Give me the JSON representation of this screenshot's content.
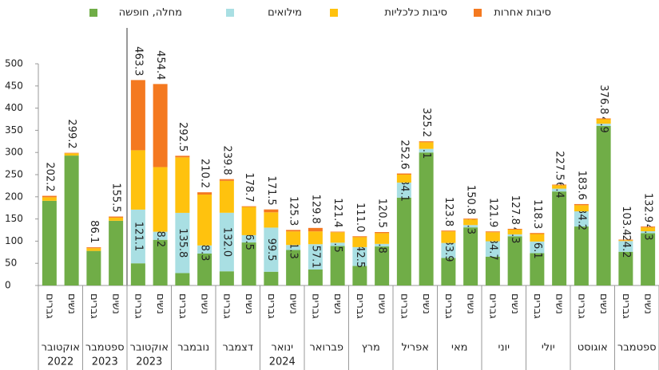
{
  "chart_data": {
    "type": "stacked-bar",
    "series": [
      {
        "name": "מחלה, חופשה",
        "color": "#70ad47",
        "values": [
          191,
          293,
          78,
          146,
          50,
          103,
          28,
          72,
          32,
          97,
          31,
          80,
          36,
          89,
          44,
          88,
          198,
          300,
          62,
          131,
          65,
          111,
          73,
          212,
          133,
          360,
          76,
          118
        ]
      },
      {
        "name": "מילואים",
        "color": "#a9dfe3",
        "values": [
          0,
          0,
          0,
          0,
          121.1,
          18.2,
          135.8,
          18.3,
          132,
          16.5,
          99.5,
          11.3,
          57.1,
          7.5,
          42.5,
          5.8,
          34.1,
          8.1,
          33.9,
          5.3,
          34.7,
          4.3,
          26.1,
          6.4,
          34.2,
          4.9,
          24.2,
          4.3
        ],
        "value_labels": [
          null,
          null,
          null,
          null,
          "121.1",
          "18.2",
          "135.8",
          "18.3",
          "132.0",
          "16.5",
          "99.5",
          "11.3",
          "57.1",
          "7.5",
          "42.5",
          "5.8",
          "34.1",
          "8.1",
          "33.9",
          "5.3",
          "34.7",
          "4.3",
          "26.1",
          "6.4",
          "34.2",
          "4.9",
          "24.2",
          "4.3"
        ]
      },
      {
        "name": "סיבות כלכליות",
        "color": "#ffc20e",
        "values": [
          8,
          5,
          6,
          7,
          133.9,
          145.8,
          125.2,
          114.7,
          72,
          63.5,
          34.5,
          30.7,
          28.9,
          23.5,
          22.5,
          24.2,
          17.9,
          14.9,
          26.1,
          12.7,
          20.3,
          10.7,
          16.9,
          7.6,
          13.8,
          10.1,
          1.8,
          8.7
        ]
      },
      {
        "name": "סיבות אחרות",
        "color": "#f47920",
        "values": [
          3.2,
          1.2,
          2.1,
          2.5,
          158.3,
          187.4,
          3.5,
          5.2,
          3.8,
          1.7,
          6.5,
          3.3,
          7.8,
          1.4,
          2,
          2.5,
          2.6,
          2.2,
          1.8,
          1.8,
          1.9,
          1.8,
          2.3,
          1.5,
          2.6,
          1.8,
          1.4,
          1.9
        ]
      }
    ],
    "total_labels": [
      "202.2",
      "299.2",
      "86.1",
      "155.5",
      "463.3",
      "454.4",
      "292.5",
      "210.2",
      "239.8",
      "178.7",
      "171.5",
      "125.3",
      "129.8",
      "121.4",
      "111.0",
      "120.5",
      "252.6",
      "325.2",
      "123.8",
      "150.8",
      "121.9",
      "127.8",
      "118.3",
      "227.5",
      "183.6",
      "376.8",
      "103.4",
      "132.9"
    ],
    "categories": [
      "גברים",
      "נשים",
      "גברים",
      "נשים",
      "גברים",
      "נשים",
      "גברים",
      "נשים",
      "גברים",
      "נשים",
      "גברים",
      "נשים",
      "גברים",
      "נשים",
      "גברים",
      "נשים",
      "גברים",
      "נשים",
      "גברים",
      "נשים",
      "גברים",
      "נשים",
      "גברים",
      "נשים",
      "גברים",
      "נשים",
      "גברים",
      "נשים"
    ],
    "groups": [
      {
        "name": "אוקטובר",
        "year": "2022"
      },
      {
        "name": "ספטמבר",
        "year": "2023"
      },
      {
        "name": "אוקטובר",
        "year": "2023"
      },
      {
        "name": "נובמבר"
      },
      {
        "name": "דצמבר"
      },
      {
        "name": "ינואר",
        "year": "2024"
      },
      {
        "name": "פברואר"
      },
      {
        "name": "מרץ"
      },
      {
        "name": "אפריל"
      },
      {
        "name": "מאי"
      },
      {
        "name": "יוני"
      },
      {
        "name": "יולי"
      },
      {
        "name": "אוגוסט"
      },
      {
        "name": "ספטמבר"
      }
    ],
    "ylim": [
      0,
      500
    ],
    "yticks": [
      0,
      50,
      100,
      150,
      200,
      250,
      300,
      350,
      400,
      450,
      500
    ]
  }
}
